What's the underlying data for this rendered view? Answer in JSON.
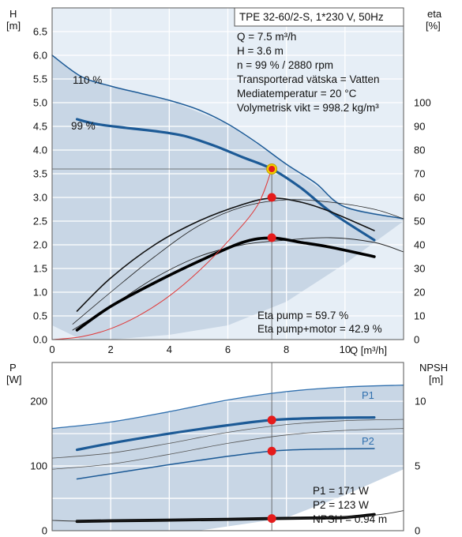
{
  "chart_data": [
    {
      "type": "line",
      "title": "TPE 32-60/2-S, 1*230 V, 50Hz",
      "xlabel": "Q [m³/h]",
      "ylabel": "H [m]",
      "ylabel_top": "H",
      "ylabel_unit": "[m]",
      "y2label_top": "eta",
      "y2label_unit": "[%]",
      "xlim": [
        0,
        12
      ],
      "ylim": [
        0,
        7
      ],
      "y2lim": [
        0,
        140
      ],
      "xticks": [
        "0",
        "2",
        "4",
        "6",
        "8",
        "10"
      ],
      "yticks": [
        "0.0",
        "0.5",
        "1.0",
        "1.5",
        "2.0",
        "2.5",
        "3.0",
        "3.5",
        "4.0",
        "4.5",
        "5.0",
        "5.5",
        "6.0",
        "6.5"
      ],
      "y2ticks": [
        "0",
        "10",
        "20",
        "30",
        "40",
        "50",
        "60",
        "70",
        "80",
        "90",
        "100"
      ],
      "grid": true,
      "info": [
        "Q = 7.5 m³/h",
        "H = 3.6 m",
        "n = 99 % / 2880 rpm",
        "Transporterad vätska = Vatten",
        "Mediatemperatur = 20 °C",
        "Volymetrisk vikt = 998.2 kg/m³"
      ],
      "eta_info": [
        "Eta pump = 59.7 %",
        "Eta pump+motor = 42.9 %"
      ],
      "series": [
        {
          "name": "110 %",
          "kind": "head",
          "x": [
            0,
            1,
            2,
            3,
            4,
            5,
            6,
            7,
            8,
            9,
            10,
            12
          ],
          "y": [
            6.0,
            5.55,
            5.35,
            5.2,
            5.05,
            4.85,
            4.55,
            4.15,
            3.7,
            3.3,
            2.8,
            2.55
          ]
        },
        {
          "name": "99 %",
          "kind": "head",
          "x": [
            0.85,
            1.5,
            2.5,
            3.5,
            4.5,
            5.5,
            6.5,
            7.5,
            8.5,
            9.5,
            11
          ],
          "y": [
            4.65,
            4.55,
            4.47,
            4.4,
            4.3,
            4.1,
            3.85,
            3.6,
            3.2,
            2.7,
            2.1
          ]
        },
        {
          "name": "Eta pump (110 %)",
          "kind": "eta_thin",
          "x": [
            0.7,
            2,
            3.5,
            5,
            6.5,
            8,
            9.5,
            11,
            12
          ],
          "y": [
            6.5,
            20,
            35,
            48,
            56,
            59,
            58,
            55,
            51
          ]
        },
        {
          "name": "Eta pump (99 %)",
          "kind": "eta_thick",
          "x": [
            0.85,
            2,
            3.5,
            5,
            6.5,
            7.5,
            8.5,
            9.5,
            11
          ],
          "y": [
            12,
            26,
            40,
            50,
            57,
            59.7,
            58,
            54,
            46
          ]
        },
        {
          "name": "Eta pump+motor (110 %)",
          "kind": "eta_thin2",
          "x": [
            0.7,
            2,
            3.5,
            5,
            6.5,
            8,
            9.5,
            11,
            12
          ],
          "y": [
            4,
            14,
            26,
            35,
            40,
            42,
            43,
            41,
            37
          ]
        },
        {
          "name": "Eta pump+motor (99 %)",
          "kind": "eta_thick2",
          "x": [
            0.85,
            2,
            3.5,
            5,
            6.5,
            7.5,
            8.5,
            9.5,
            11
          ],
          "y": [
            4,
            14,
            24,
            33,
            41,
            42.9,
            41,
            39,
            35
          ]
        },
        {
          "name": "system curve",
          "kind": "system",
          "x": [
            0,
            1,
            2,
            3,
            4,
            5,
            6,
            7,
            7.5
          ],
          "y": [
            0,
            0.06,
            0.23,
            0.52,
            0.92,
            1.44,
            2.07,
            2.82,
            3.6
          ]
        }
      ],
      "duty_points": [
        {
          "x": 7.5,
          "y": 3.6,
          "role": "head"
        },
        {
          "x": 7.5,
          "y": 3.0,
          "role": "eta pump"
        },
        {
          "x": 7.5,
          "y": 2.15,
          "role": "eta pump+motor"
        }
      ],
      "operating_area": {
        "x": [
          0,
          1,
          2,
          4,
          6,
          8,
          10,
          12,
          12,
          10,
          8,
          6,
          4,
          2,
          1,
          0
        ],
        "y": [
          6.0,
          5.55,
          5.35,
          5.05,
          4.55,
          3.7,
          2.8,
          2.55,
          2.5,
          1.6,
          0.8,
          0.3,
          0.1,
          0.0,
          0.0,
          0.3
        ]
      }
    },
    {
      "type": "line",
      "ylabel_top": "P",
      "ylabel_unit": "[W]",
      "y2label_top": "NPSH",
      "y2label_unit": "[m]",
      "xlim": [
        0,
        12
      ],
      "ylim": [
        0,
        260
      ],
      "y2lim": [
        0,
        13
      ],
      "yticks": [
        "0",
        "100",
        "200"
      ],
      "y2ticks": [
        "0",
        "5",
        "10"
      ],
      "grid": true,
      "info": [
        "P1 = 171 W",
        "P2 = 123 W",
        "NPSH = 0.94 m"
      ],
      "labels": {
        "p1": "P1",
        "p2": "P2"
      },
      "series": [
        {
          "name": "P1",
          "kind": "p_thin_top",
          "x": [
            0,
            2,
            4,
            6,
            8,
            10,
            12
          ],
          "y": [
            158,
            168,
            184,
            202,
            215,
            222,
            225
          ]
        },
        {
          "name": "P1 (99 %)",
          "kind": "p_thick",
          "x": [
            0.85,
            2,
            4,
            6,
            7.5,
            9,
            11
          ],
          "y": [
            125,
            135,
            150,
            163,
            171,
            174,
            175
          ]
        },
        {
          "name": "P2",
          "kind": "p_thin_mid",
          "x": [
            0,
            2,
            4,
            6,
            8,
            10,
            12
          ],
          "y": [
            112,
            120,
            135,
            152,
            164,
            170,
            172
          ]
        },
        {
          "name": "P2 (99 %)",
          "kind": "p_blue_low",
          "x": [
            0.85,
            2,
            4,
            6,
            7.5,
            9,
            11
          ],
          "y": [
            80,
            88,
            102,
            115,
            123,
            126,
            127
          ]
        },
        {
          "name": "P lower (110 %)",
          "kind": "p_thin_low",
          "x": [
            0,
            2,
            4,
            6,
            8,
            10,
            12
          ],
          "y": [
            95,
            103,
            118,
            135,
            148,
            155,
            158
          ]
        },
        {
          "name": "NPSH",
          "kind": "npsh",
          "x": [
            0.85,
            2,
            4,
            6,
            7.5,
            9,
            10,
            11
          ],
          "y": [
            0.72,
            0.76,
            0.82,
            0.88,
            0.94,
            0.98,
            1.02,
            1.25
          ]
        },
        {
          "name": "NPSH thin",
          "kind": "npsh_thin",
          "x": [
            0,
            1,
            3,
            5,
            7,
            9,
            11,
            12
          ],
          "y": [
            0.8,
            0.74,
            0.8,
            0.86,
            0.92,
            0.98,
            1.2,
            1.55
          ]
        }
      ],
      "duty_points": [
        {
          "x": 7.5,
          "y": 171,
          "role": "P1"
        },
        {
          "x": 7.5,
          "y": 123,
          "role": "P2"
        },
        {
          "x": 7.5,
          "y2": 0.94,
          "role": "NPSH"
        }
      ]
    }
  ],
  "colors": {
    "area": "#c8d6e5",
    "area_light": "#e6eef6",
    "head": "#1c5a96",
    "thin_blue": "#2f6fae",
    "grid": "#ffffff",
    "frame": "#555555",
    "system": "#e03a3a",
    "dot": "#e51b1b",
    "dot_ring": "#f2d000"
  }
}
